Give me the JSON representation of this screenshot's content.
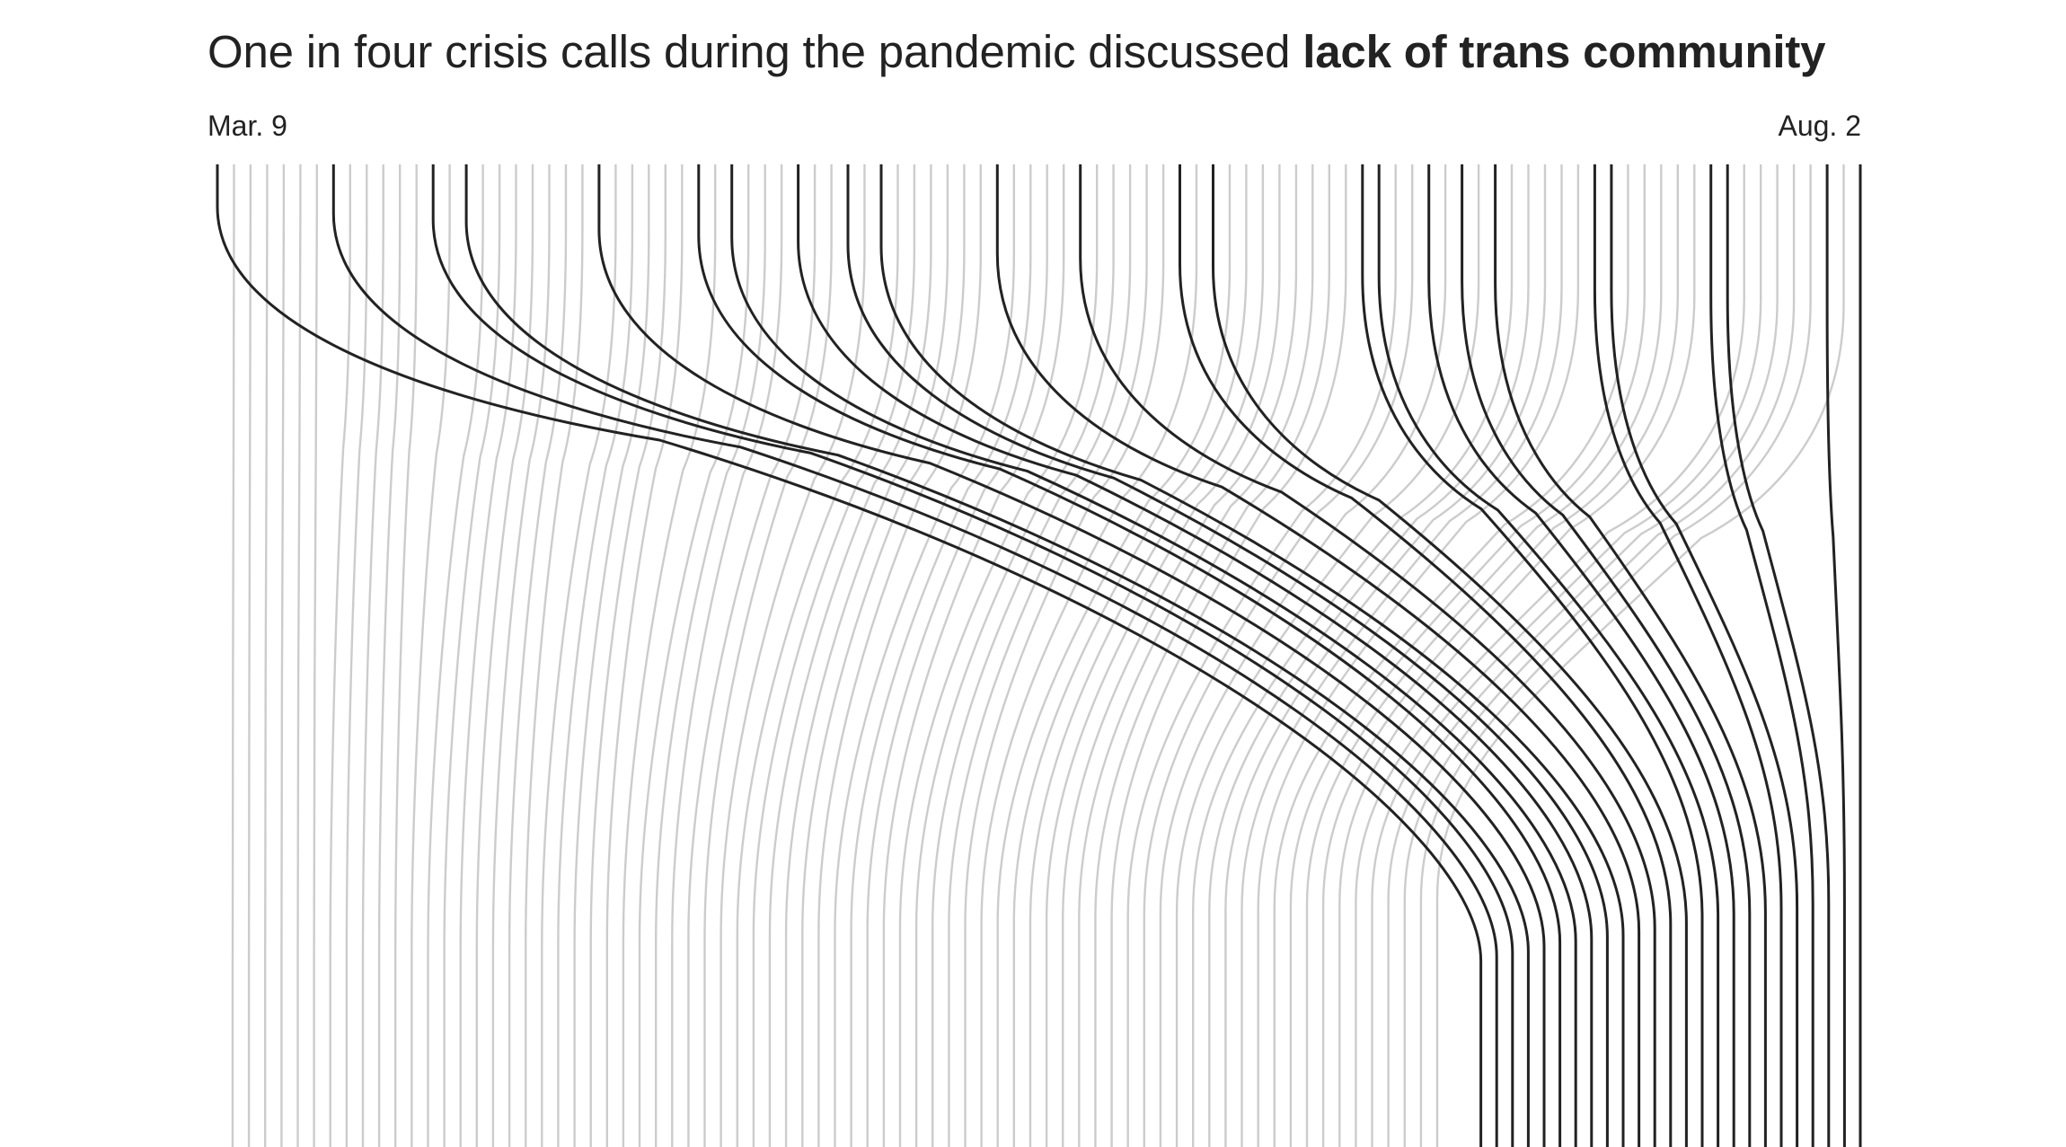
{
  "title": {
    "plain": "One in four crisis calls during the pandemic discussed ",
    "bold": "lack of trans community"
  },
  "chart_data": {
    "type": "line",
    "description_axis": "time",
    "x_start_label": "Mar. 9",
    "x_end_label": "Aug. 2",
    "colors": {
      "highlight": "#222222",
      "other": "#cccccc"
    },
    "total_calls": 100,
    "highlighted_calls": 25,
    "highlighted_indices": [
      0,
      7,
      13,
      15,
      23,
      29,
      31,
      35,
      38,
      40,
      47,
      52,
      58,
      60,
      69,
      70,
      73,
      75,
      77,
      83,
      84,
      90,
      91,
      97,
      99
    ]
  }
}
